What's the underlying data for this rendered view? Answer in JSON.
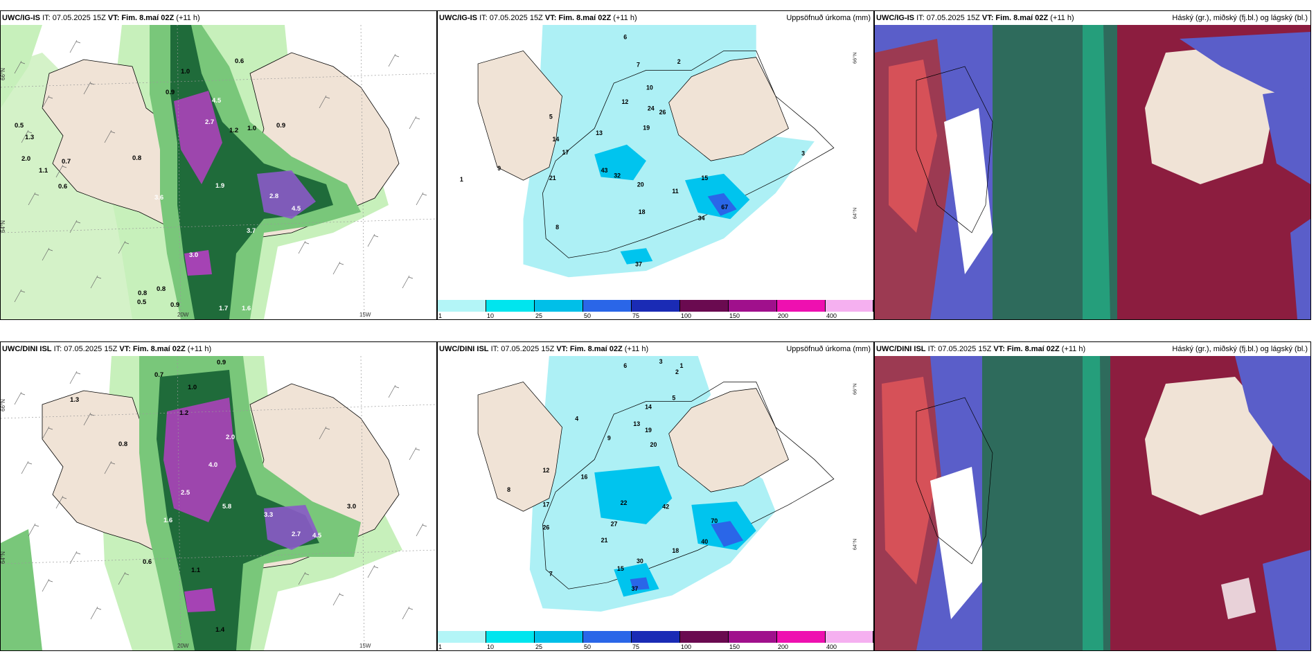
{
  "panels": {
    "top_left": {
      "model": "UWC/IG-IS",
      "info": "IT: 07.05.2025 15Z",
      "vt_label": "VT:",
      "vt": "Fim. 8.maí 02Z",
      "lead": "(+11 h)",
      "right_title": ""
    },
    "top_mid": {
      "model": "UWC/IG-IS",
      "info": "IT: 07.05.2025 15Z",
      "vt_label": "VT:",
      "vt": "Fim. 8.maí 02Z",
      "lead": "(+11 h)",
      "right_title": "Uppsöfnuð úrkoma (mm)"
    },
    "top_right": {
      "model": "UWC/IG-IS",
      "info": "IT: 07.05.2025 15Z",
      "vt_label": "VT:",
      "vt": "Fim. 8.maí 02Z",
      "lead": "(+11 h)",
      "right_title": "Háský (gr.), miðský (fj.bl.) og lágský (bl.)"
    },
    "bot_left": {
      "model": "UWC/DINI ISL",
      "info": "IT: 07.05.2025 15Z",
      "vt_label": "VT:",
      "vt": "Fim. 8.maí 02Z",
      "lead": "(+11 h)",
      "right_title": ""
    },
    "bot_mid": {
      "model": "UWC/DINI ISL",
      "info": "IT: 07.05.2025 15Z",
      "vt_label": "VT:",
      "vt": "Fim. 8.maí 02Z",
      "lead": "(+11 h)",
      "right_title": "Uppsöfnuð úrkoma (mm)"
    },
    "bot_right": {
      "model": "UWC/DINI ISL",
      "info": "IT: 07.05.2025 15Z",
      "vt_label": "VT:",
      "vt": "Fim. 8.maí 02Z",
      "lead": "(+11 h)",
      "right_title": "Háský (gr.), miðský (fj.bl.) og lágský (bl.)"
    }
  },
  "axis_labels": {
    "lat66": "66°N",
    "lat64": "64°N",
    "lon20": "20W",
    "lon15": "15W"
  },
  "legend": {
    "ticks": [
      "1",
      "10",
      "25",
      "50",
      "75",
      "100",
      "150",
      "200",
      "400"
    ],
    "colors": [
      "#b3f5f7",
      "#00e5ee",
      "#00bfe8",
      "#2a66e8",
      "#1a2bb5",
      "#6a0a50",
      "#a0108c",
      "#ee10b0",
      "#f5b0f0"
    ]
  },
  "colors": {
    "land": "#f0e3d6",
    "sea": "#ffffff",
    "precip_light": "#adf0f5",
    "green_light": "#c7f0bb",
    "green_mid": "#79c77a",
    "green_dark": "#1f6b3a",
    "purple": "#b43fc2",
    "cloud_high": "#2e6b5c",
    "cloud_mid": "#8c1d3f",
    "cloud_low": "#5a5ec9"
  },
  "top_left_values": [
    "1.0",
    "0.9",
    "0.6",
    "0.8",
    "1.2",
    "4.5",
    "2.7",
    "1.9",
    "2.8",
    "3.6",
    "1.0",
    "0.5",
    "0.7",
    "2.0",
    "1.1",
    "0.8",
    "0.6",
    "0.9",
    "3.0",
    "3.7",
    "4.5",
    "1.7",
    "1.6",
    "0.9",
    "0.8",
    "0.5",
    "1.3"
  ],
  "top_mid_values": [
    "6",
    "7",
    "10",
    "12",
    "13",
    "14",
    "17",
    "19",
    "21",
    "24",
    "26",
    "32",
    "37",
    "34",
    "43",
    "67",
    "9",
    "8",
    "5",
    "3",
    "2",
    "1",
    "20",
    "18",
    "15",
    "11"
  ],
  "bot_left_values": [
    "0.9",
    "0.7",
    "1.0",
    "1.3",
    "2.0",
    "4.0",
    "2.5",
    "3.3",
    "5.8",
    "1.6",
    "2.7",
    "4.5",
    "1.2",
    "0.8",
    "0.6",
    "1.4",
    "3.0",
    "1.1"
  ],
  "bot_mid_values": [
    "6",
    "3",
    "2",
    "1",
    "14",
    "13",
    "19",
    "20",
    "9",
    "5",
    "17",
    "26",
    "27",
    "37",
    "40",
    "42",
    "70",
    "22",
    "30",
    "15",
    "16",
    "18",
    "21",
    "12",
    "8",
    "7",
    "4"
  ]
}
